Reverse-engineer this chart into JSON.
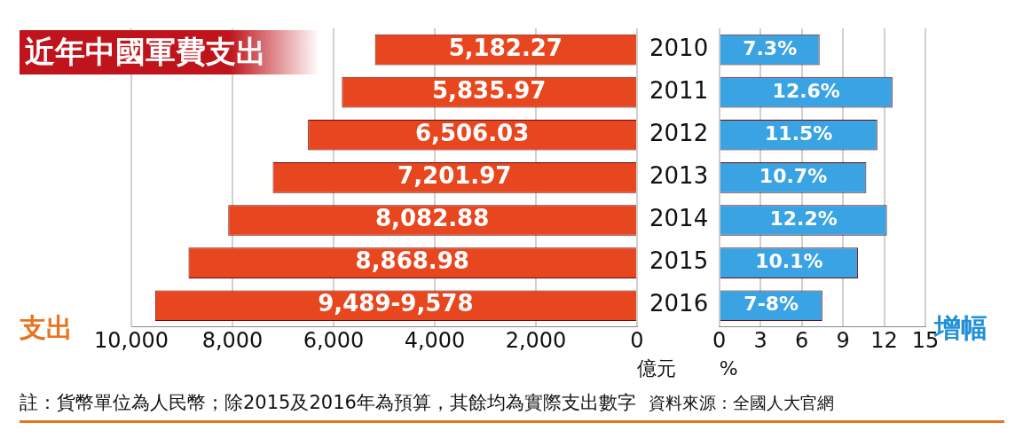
{
  "chart_data": [
    {
      "type": "bar",
      "orientation": "horizontal",
      "title": "近年中國軍費支出",
      "ylabel": "支出",
      "xlabel": "億元",
      "categories": [
        "2010",
        "2011",
        "2012",
        "2013",
        "2014",
        "2015",
        "2016"
      ],
      "values": [
        5182.27,
        5835.97,
        6506.03,
        7201.97,
        8082.88,
        8868.98,
        9530
      ],
      "value_labels": [
        "5,182.27",
        "5,835.97",
        "6,506.03",
        "7,201.97",
        "8,082.88",
        "8,868.98",
        "9,489-9,578"
      ],
      "color": "#e8461e",
      "xlim": [
        10000,
        0
      ],
      "xticks": [
        {
          "value": 10000,
          "label": "10,000"
        },
        {
          "value": 8000,
          "label": "8,000"
        },
        {
          "value": 6000,
          "label": "6,000"
        },
        {
          "value": 4000,
          "label": "4,000"
        },
        {
          "value": 2000,
          "label": "2,000"
        },
        0
      ],
      "grid": "x",
      "annotations": [
        "註：貨幣單位為人民幣；除2015及2016年為預算，其餘均為實際支出數字",
        "資料來源：全國人大官網"
      ]
    },
    {
      "type": "bar",
      "orientation": "horizontal",
      "ylabel": "增幅",
      "xlabel": "%",
      "categories": [
        "2010",
        "2011",
        "2012",
        "2013",
        "2014",
        "2015",
        "2016"
      ],
      "values": [
        7.3,
        12.6,
        11.5,
        10.7,
        12.2,
        10.1,
        7.5
      ],
      "value_labels": [
        "7.3%",
        "12.6%",
        "11.5%",
        "10.7%",
        "12.2%",
        "10.1%",
        "7-8%"
      ],
      "color": "#3aa3e3",
      "xlim": [
        0,
        15
      ],
      "xticks": [
        0,
        3,
        6,
        9,
        12,
        15
      ],
      "grid": "x",
      "tick_labels": "x"
    }
  ]
}
